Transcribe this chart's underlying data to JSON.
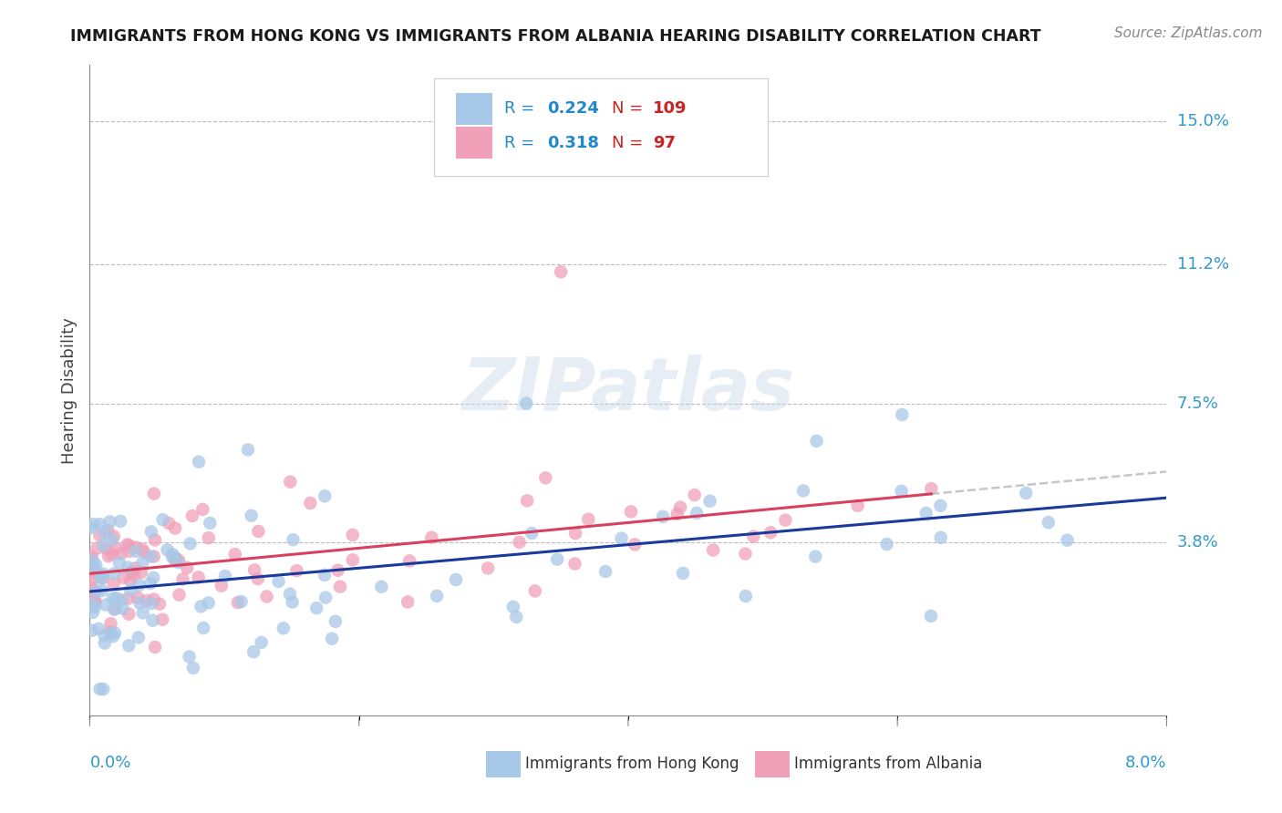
{
  "title": "IMMIGRANTS FROM HONG KONG VS IMMIGRANTS FROM ALBANIA HEARING DISABILITY CORRELATION CHART",
  "source": "Source: ZipAtlas.com",
  "ylabel": "Hearing Disability",
  "yticks": [
    0.038,
    0.075,
    0.112,
    0.15
  ],
  "ytick_labels": [
    "3.8%",
    "7.5%",
    "11.2%",
    "15.0%"
  ],
  "xlim": [
    0.0,
    0.08
  ],
  "ylim": [
    -0.008,
    0.165
  ],
  "hk_color": "#a8c8e8",
  "al_color": "#f0a0b8",
  "hk_line_color": "#1a3a9c",
  "al_line_color": "#d84060",
  "al_dash_color": "#c0c0c0",
  "R_hk": 0.224,
  "N_hk": 109,
  "R_al": 0.318,
  "N_al": 97,
  "legend_r_color": "#2288cc",
  "legend_n_color": "#cc2222",
  "watermark": "ZIPatlas"
}
